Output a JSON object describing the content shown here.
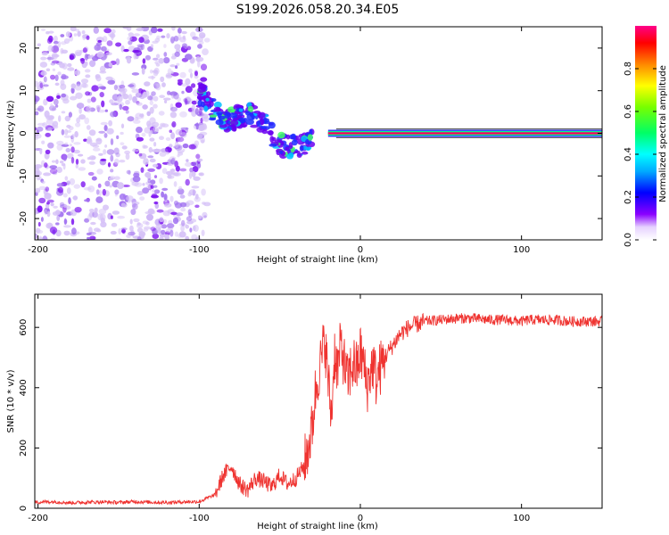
{
  "title": "S199.2026.058.20.34.E05",
  "chart_data": [
    {
      "type": "heatmap",
      "xlabel": "Height of straight line (km)",
      "ylabel": "Frequency (Hz)",
      "xlim": [
        -202,
        150
      ],
      "ylim": [
        -25,
        25
      ],
      "x_ticks": [
        -200,
        -100,
        0,
        100
      ],
      "y_ticks": [
        -20,
        -10,
        0,
        10,
        20
      ],
      "colorbar": {
        "label": "Normalized spectral amplitude",
        "range": [
          0,
          1
        ],
        "ticks": [
          0.0,
          0.2,
          0.4,
          0.6,
          0.8
        ]
      },
      "features": [
        {
          "region": "noise",
          "x_range": [
            -202,
            -95
          ],
          "freq_range": [
            -25,
            25
          ],
          "amplitude": 0.1
        },
        {
          "region": "descending track",
          "x_range": [
            -100,
            -30
          ],
          "freq_start": 8,
          "freq_end": -4,
          "amplitude": 0.3
        },
        {
          "region": "steady line",
          "x_range": [
            -20,
            150
          ],
          "freq": 0,
          "amplitude": 0.9
        }
      ]
    },
    {
      "type": "line",
      "xlabel": "Height of straight line (km)",
      "ylabel": "SNR (10 * v/v)",
      "xlim": [
        -202,
        150
      ],
      "ylim": [
        0,
        710
      ],
      "x_ticks": [
        -200,
        -100,
        0,
        100
      ],
      "y_ticks": [
        0,
        200,
        400,
        600
      ],
      "series": [
        {
          "name": "SNR",
          "color": "#ef3330",
          "x": [
            -202,
            -190,
            -180,
            -170,
            -160,
            -150,
            -140,
            -130,
            -120,
            -110,
            -100,
            -90,
            -85,
            -80,
            -75,
            -70,
            -65,
            -60,
            -55,
            -50,
            -45,
            -40,
            -35,
            -30,
            -28,
            -26,
            -24,
            -22,
            -20,
            -18,
            -16,
            -14,
            -12,
            -10,
            -8,
            -6,
            -4,
            -2,
            0,
            2,
            4,
            6,
            8,
            10,
            12,
            15,
            20,
            25,
            30,
            35,
            40,
            50,
            60,
            70,
            80,
            90,
            100,
            105,
            110,
            120,
            130,
            140,
            150
          ],
          "values": [
            20,
            22,
            18,
            20,
            21,
            19,
            22,
            20,
            19,
            21,
            22,
            45,
            110,
            140,
            80,
            60,
            100,
            90,
            70,
            110,
            80,
            100,
            140,
            260,
            380,
            450,
            500,
            560,
            430,
            300,
            520,
            460,
            550,
            480,
            420,
            460,
            480,
            460,
            520,
            480,
            400,
            450,
            480,
            420,
            460,
            500,
            540,
            580,
            600,
            610,
            620,
            625,
            630,
            630,
            625,
            625,
            620,
            625,
            625,
            625,
            620,
            620,
            620
          ]
        }
      ]
    }
  ]
}
